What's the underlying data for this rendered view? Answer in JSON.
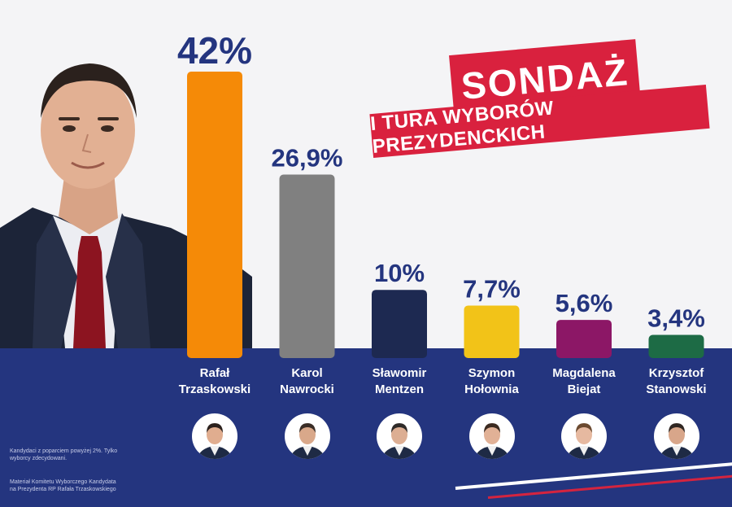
{
  "header": {
    "title": "SONDAŻ",
    "subtitle": "I TURA WYBORÓW PREZYDENCKICH"
  },
  "footnotes": {
    "note1": "Kandydaci z poparciem powyżej 2%. Tylko wyborcy zdecydowani.",
    "note2": "Materiał Komitetu Wyborczego Kandydata na Prezydenta RP Rafała Trzaskowskiego"
  },
  "colors": {
    "band": "#24357f",
    "banner": "#d9213e"
  },
  "chart_data": {
    "type": "bar",
    "title": "SONDAŻ",
    "categories": [
      "Rafał Trzaskowski",
      "Karol Nawrocki",
      "Sławomir Mentzen",
      "Szymon Hołownia",
      "Magdalena Biejat",
      "Krzysztof Stanowski"
    ],
    "name_lines": [
      [
        "Rafał",
        "Trzaskowski"
      ],
      [
        "Karol",
        "Nawrocki"
      ],
      [
        "Sławomir",
        "Mentzen"
      ],
      [
        "Szymon",
        "Hołownia"
      ],
      [
        "Magdalena",
        "Biejat"
      ],
      [
        "Krzysztof",
        "Stanowski"
      ]
    ],
    "values": [
      42,
      26.9,
      10,
      7.7,
      5.6,
      3.4
    ],
    "value_labels": [
      "42%",
      "26,9%",
      "10%",
      "7,7%",
      "5,6%",
      "3,4%"
    ],
    "colors": [
      "#f58a07",
      "#808080",
      "#1d2951",
      "#f2c318",
      "#8c1766",
      "#1d6b45"
    ],
    "xlabel": "",
    "ylabel": "",
    "ylim": [
      0,
      42
    ],
    "grid": false,
    "legend": "none"
  }
}
